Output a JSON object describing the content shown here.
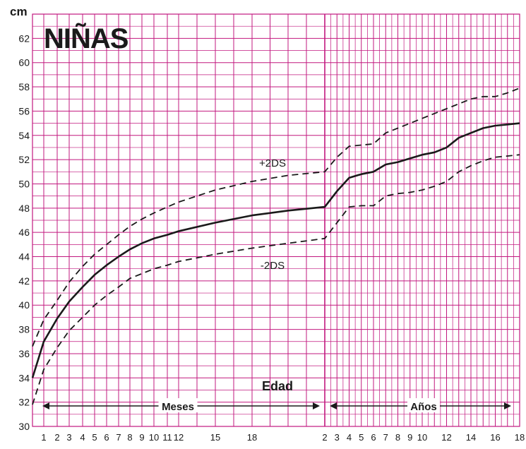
{
  "chart_data": {
    "type": "line",
    "title": "NIÑAS",
    "ylabel": "cm",
    "xlabel": "Edad",
    "ylim": [
      30,
      64
    ],
    "yticks": [
      30,
      32,
      34,
      36,
      38,
      40,
      42,
      44,
      46,
      48,
      50,
      52,
      54,
      56,
      58,
      60,
      62
    ],
    "grid": true,
    "colors": {
      "grid": "#c2187f",
      "line": "#1a1a1a",
      "text": "#1a1a1a"
    },
    "segments": [
      {
        "name": "Meses",
        "unit": "months",
        "range": [
          0,
          24
        ],
        "tick_values": [
          1,
          2,
          3,
          4,
          5,
          6,
          7,
          8,
          9,
          10,
          11,
          12,
          15,
          18
        ],
        "tick_labels": [
          "1",
          "2",
          "3",
          "4",
          "5",
          "6",
          "7",
          "8",
          "9",
          "10",
          "11",
          "12",
          "15",
          "18"
        ]
      },
      {
        "name": "Años",
        "unit": "years",
        "range": [
          2,
          18
        ],
        "tick_values": [
          2,
          3,
          4,
          5,
          6,
          7,
          8,
          9,
          10,
          12,
          14,
          16,
          18
        ],
        "tick_labels": [
          "2",
          "3",
          "4",
          "5",
          "6",
          "7",
          "8",
          "9",
          "10",
          "12",
          "14",
          "16",
          "18"
        ]
      }
    ],
    "series": [
      {
        "label": "+2DS",
        "style": "dashed",
        "months": {
          "x": [
            0,
            1,
            2,
            3,
            4,
            5,
            6,
            7,
            8,
            9,
            10,
            11,
            12,
            15,
            18,
            21,
            24
          ],
          "y": [
            36.6,
            38.8,
            40.4,
            41.9,
            43.2,
            44.2,
            45.0,
            45.8,
            46.5,
            47.1,
            47.6,
            48.1,
            48.5,
            49.5,
            50.2,
            50.7,
            51.0
          ]
        },
        "years": {
          "x": [
            2,
            3,
            4,
            5,
            6,
            7,
            8,
            9,
            10,
            11,
            12,
            13,
            14,
            15,
            16,
            17,
            18
          ],
          "y": [
            51.0,
            52.2,
            53.1,
            53.2,
            53.3,
            54.2,
            54.6,
            55.0,
            55.4,
            55.8,
            56.2,
            56.6,
            57.0,
            57.2,
            57.2,
            57.5,
            57.9
          ]
        }
      },
      {
        "label": "",
        "style": "solid",
        "months": {
          "x": [
            0,
            1,
            2,
            3,
            4,
            5,
            6,
            7,
            8,
            9,
            10,
            11,
            12,
            15,
            18,
            21,
            24
          ],
          "y": [
            34.0,
            37.0,
            38.9,
            40.3,
            41.5,
            42.5,
            43.3,
            44.0,
            44.6,
            45.1,
            45.5,
            45.8,
            46.1,
            46.8,
            47.4,
            47.8,
            48.1
          ]
        },
        "years": {
          "x": [
            2,
            3,
            4,
            5,
            6,
            7,
            8,
            9,
            10,
            11,
            12,
            13,
            14,
            15,
            16,
            17,
            18
          ],
          "y": [
            48.1,
            49.4,
            50.5,
            50.8,
            51.0,
            51.6,
            51.8,
            52.1,
            52.4,
            52.6,
            53.0,
            53.8,
            54.2,
            54.6,
            54.8,
            54.9,
            55.0
          ]
        }
      },
      {
        "label": "-2DS",
        "style": "dashed",
        "months": {
          "x": [
            0,
            1,
            2,
            3,
            4,
            5,
            6,
            7,
            8,
            9,
            10,
            11,
            12,
            15,
            18,
            21,
            24
          ],
          "y": [
            31.8,
            34.7,
            36.5,
            37.9,
            39.0,
            40.0,
            40.8,
            41.5,
            42.2,
            42.6,
            43.0,
            43.3,
            43.6,
            44.2,
            44.7,
            45.1,
            45.5
          ]
        },
        "years": {
          "x": [
            2,
            3,
            4,
            5,
            6,
            7,
            8,
            9,
            10,
            11,
            12,
            13,
            14,
            15,
            16,
            17,
            18
          ],
          "y": [
            45.5,
            46.8,
            48.1,
            48.2,
            48.2,
            49.0,
            49.2,
            49.3,
            49.5,
            49.8,
            50.2,
            51.0,
            51.5,
            51.9,
            52.2,
            52.3,
            52.4
          ]
        }
      }
    ]
  }
}
